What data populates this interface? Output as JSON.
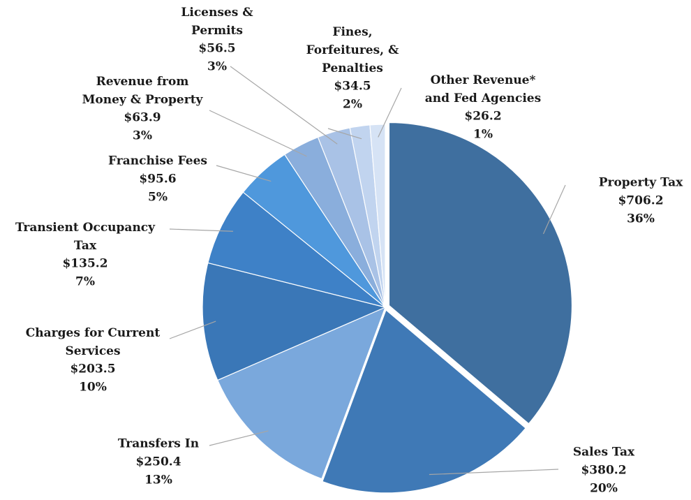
{
  "chart_data": {
    "type": "pie",
    "categories": [
      "Property Tax",
      "Sales Tax",
      "Transfers In",
      "Charges for Current\nServices",
      "Transient Occupancy\nTax",
      "Franchise Fees",
      "Revenue from\nMoney & Property",
      "Licenses &\nPermits",
      "Fines,\nForfeitures, &\nPenalties",
      "Other Revenue*\nand Fed Agencies"
    ],
    "values": [
      706.2,
      380.2,
      250.4,
      203.5,
      135.2,
      95.6,
      63.9,
      56.5,
      34.5,
      26.2
    ],
    "value_labels": [
      "$706.2",
      "$380.2",
      "$250.4",
      "$203.5",
      "$135.2",
      "$95.6",
      "$63.9",
      "$56.5",
      "$34.5",
      "$26.2"
    ],
    "percents": [
      36,
      20,
      13,
      10,
      7,
      5,
      3,
      3,
      2,
      1
    ],
    "percent_labels": [
      "36%",
      "20%",
      "13%",
      "10%",
      "7%",
      "5%",
      "3%",
      "3%",
      "2%",
      "1%"
    ],
    "colors": [
      "#3f6f9f",
      "#3f79b6",
      "#7aa8dc",
      "#3a77b7",
      "#3e81c7",
      "#4f98dc",
      "#8aaedc",
      "#a9c2e6",
      "#c1d4ef",
      "#d6e3f5"
    ]
  }
}
